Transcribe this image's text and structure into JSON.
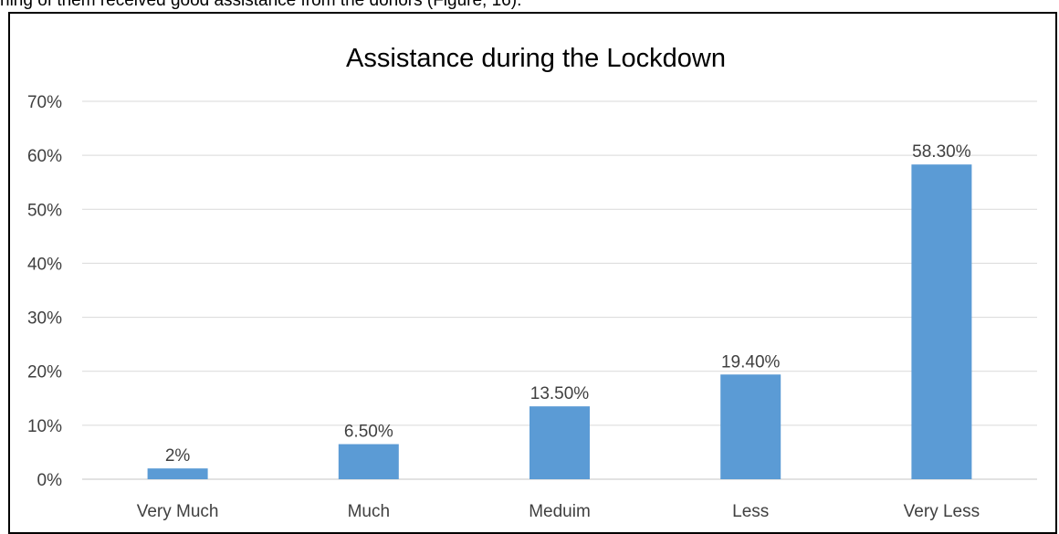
{
  "context_text": "ning of them received good assistance from the donors (Figure, 16).",
  "chart_data": {
    "type": "bar",
    "title": "Assistance during the Lockdown",
    "categories": [
      "Very Much",
      "Much",
      "Meduim",
      "Less",
      "Very Less"
    ],
    "values": [
      2,
      6.5,
      13.5,
      19.4,
      58.3
    ],
    "data_labels": [
      "2%",
      "6.50%",
      "13.50%",
      "19.40%",
      "58.30%"
    ],
    "y_ticks": [
      0,
      10,
      20,
      30,
      40,
      50,
      60,
      70
    ],
    "y_tick_labels": [
      "0%",
      "10%",
      "20%",
      "30%",
      "40%",
      "50%",
      "60%",
      "70%"
    ],
    "ylim": [
      0,
      70
    ],
    "xlabel": "",
    "ylabel": "",
    "grid": true,
    "legend": false,
    "colors": {
      "bar": "#5B9BD5",
      "grid": "#D9D9D9",
      "text": "#404040",
      "title": "#000000"
    }
  }
}
